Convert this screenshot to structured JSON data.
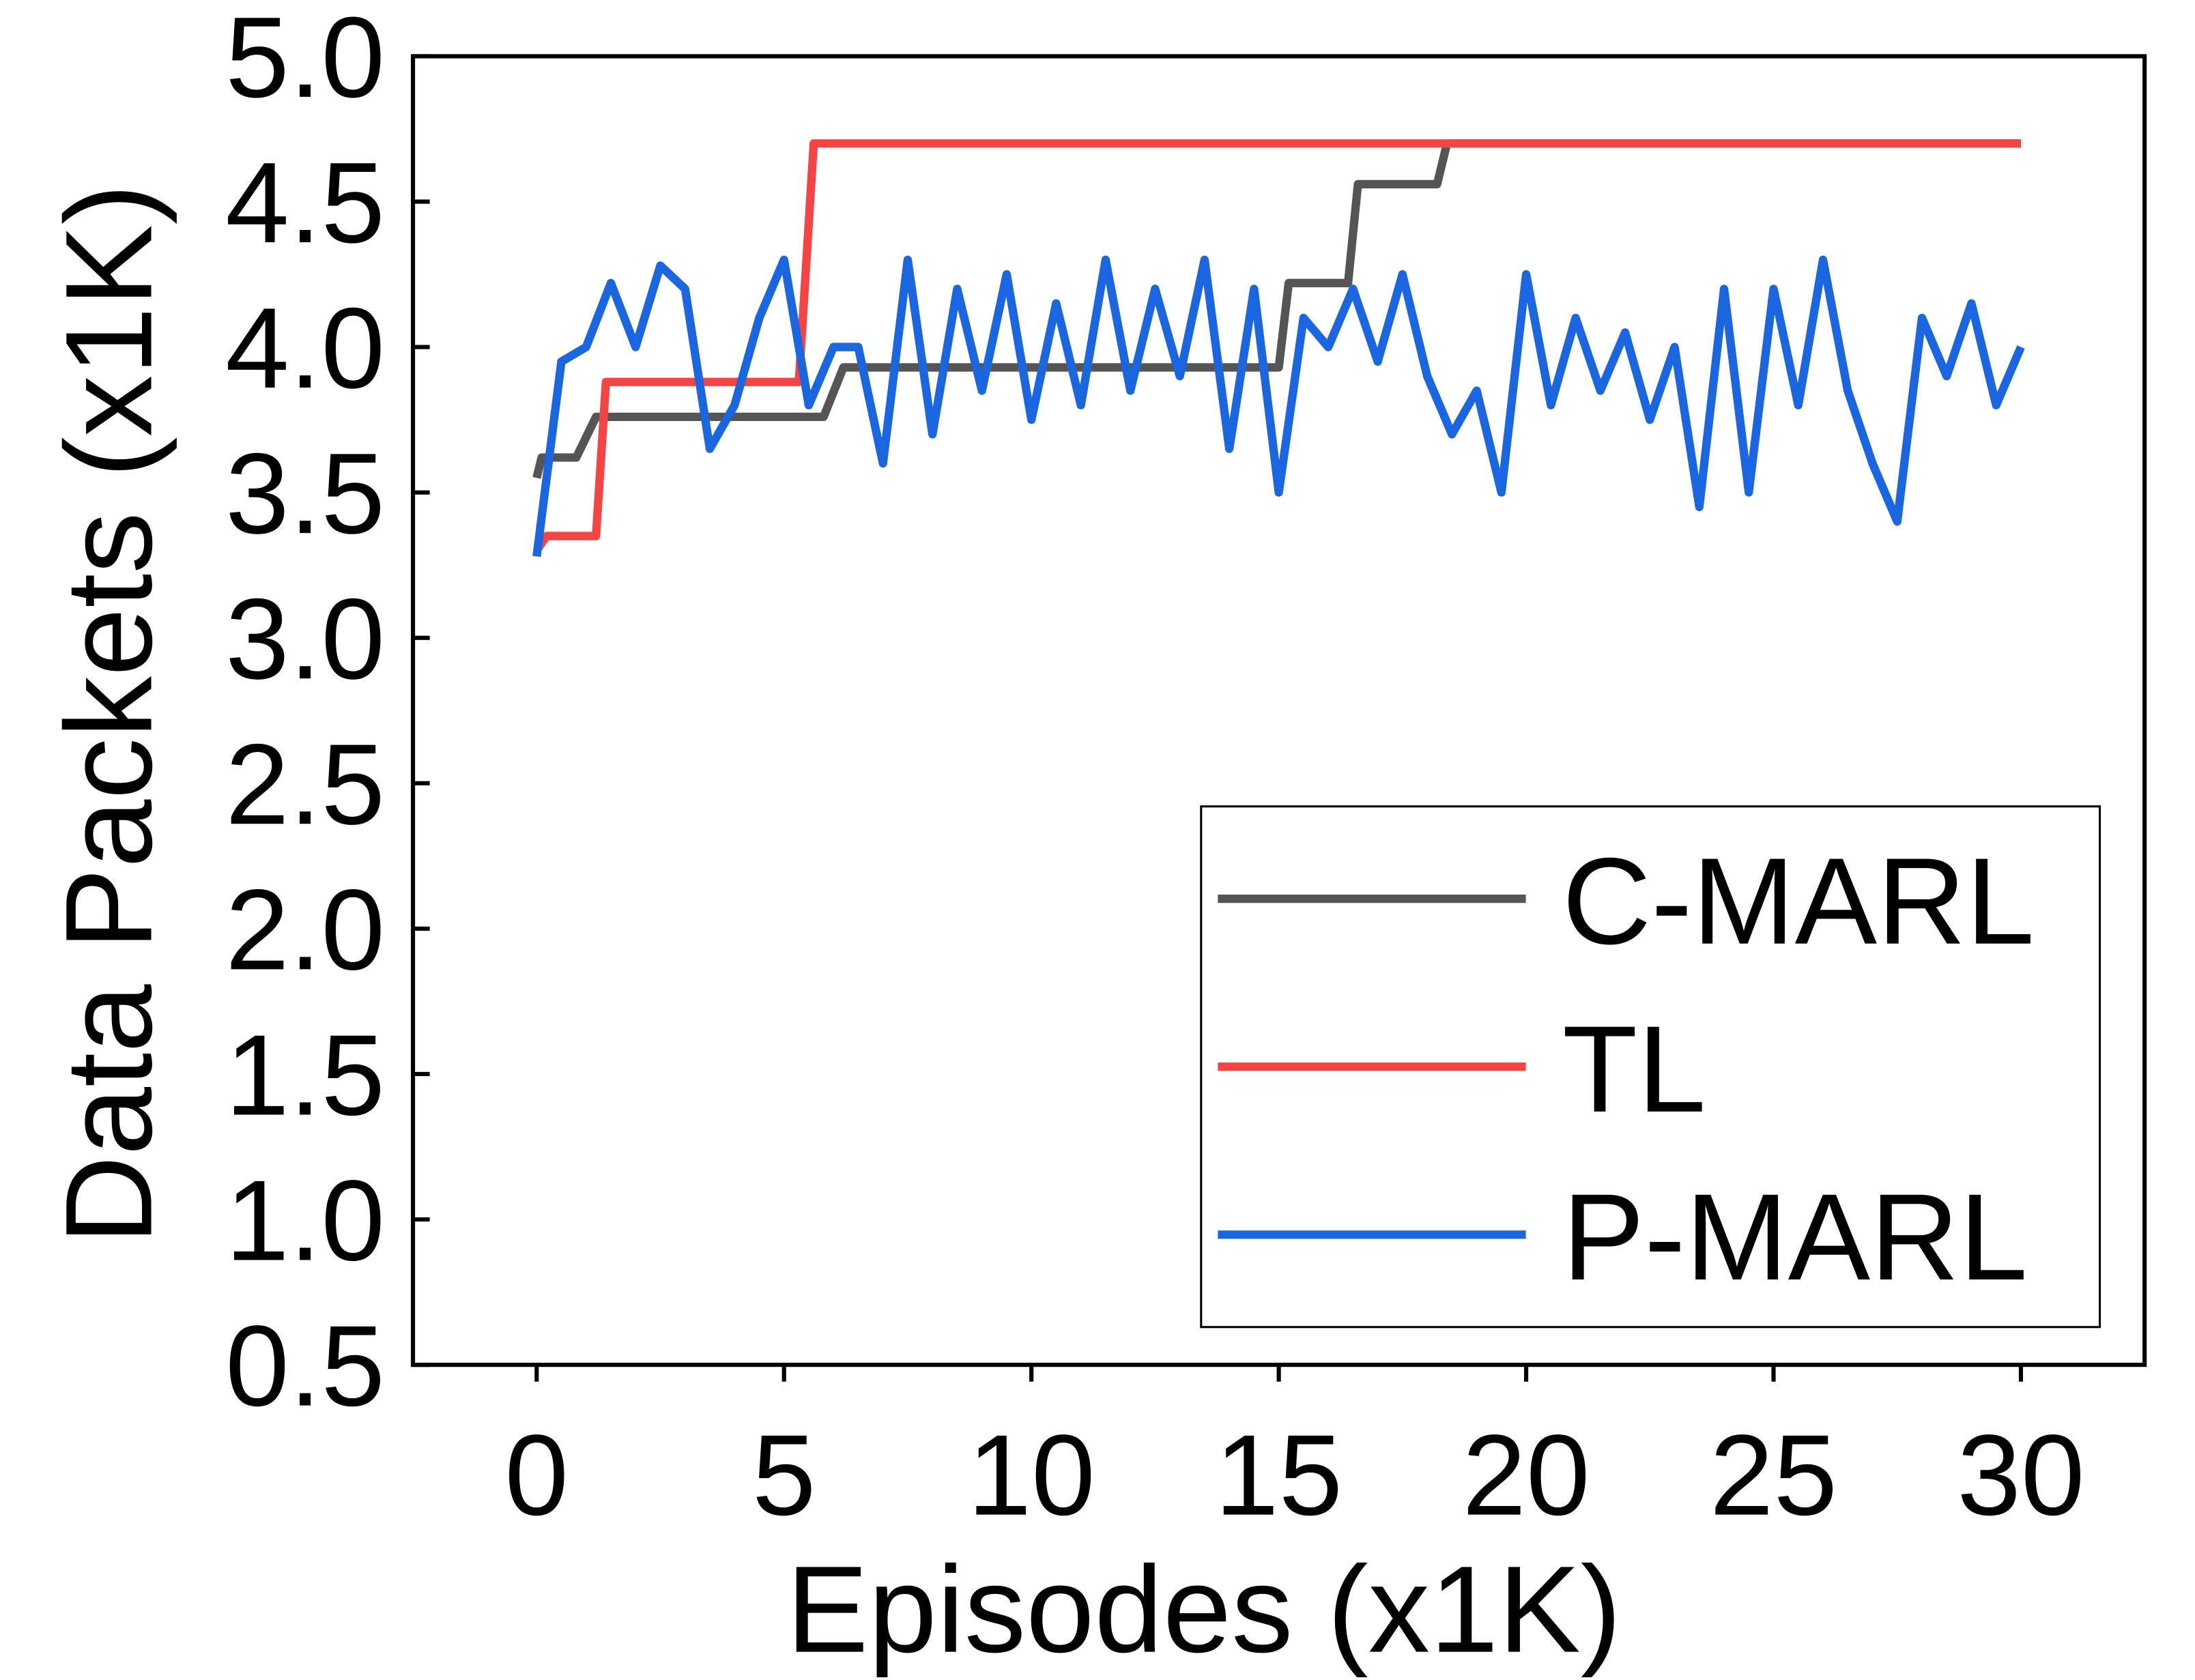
{
  "chart_data": {
    "type": "line",
    "x_label": "Episodes (x1K)",
    "y_label": "Data Packets (x1K)",
    "xlim": [
      -2.5,
      32.5
    ],
    "xticks": [
      0,
      5,
      10,
      15,
      20,
      25,
      30
    ],
    "ylim": [
      0.5,
      5.0
    ],
    "yticks": [
      {
        "value": 0.5,
        "label": "0.5"
      },
      {
        "value": 1.0,
        "label": "1.0"
      },
      {
        "value": 1.5,
        "label": "1.5"
      },
      {
        "value": 2.0,
        "label": "2.0"
      },
      {
        "value": 2.5,
        "label": "2.5"
      },
      {
        "value": 3.0,
        "label": "3.0"
      },
      {
        "value": 3.5,
        "label": "3.5"
      },
      {
        "value": 4.0,
        "label": "4.0"
      },
      {
        "value": 4.5,
        "label": "4.5"
      },
      {
        "value": 5.0,
        "label": "5.0"
      }
    ],
    "legend": "lower right",
    "series": [
      {
        "name": "C-MARL",
        "color": "#555555",
        "x": [
          0,
          0.1,
          0.8,
          1.2,
          5.8,
          6.2,
          15.0,
          15.2,
          16.4,
          16.6,
          18.2,
          18.4,
          30
        ],
        "values": [
          3.55,
          3.62,
          3.62,
          3.76,
          3.76,
          3.93,
          3.93,
          4.22,
          4.22,
          4.56,
          4.56,
          4.7,
          4.7
        ]
      },
      {
        "name": "TL",
        "color": "#f44444",
        "x": [
          0,
          0.2,
          1.2,
          1.4,
          5.3,
          5.6,
          30
        ],
        "values": [
          3.3,
          3.35,
          3.35,
          3.88,
          3.88,
          4.7,
          4.7
        ]
      },
      {
        "name": "P-MARL",
        "color": "#1a66e0",
        "x": [
          0,
          0.5,
          1,
          1.5,
          2,
          2.5,
          3,
          3.5,
          4,
          4.5,
          5,
          5.5,
          6,
          6.5,
          7,
          7.5,
          8,
          8.5,
          9,
          9.5,
          10,
          10.5,
          11,
          11.5,
          12,
          12.5,
          13,
          13.5,
          14,
          14.5,
          15,
          15.5,
          16,
          16.5,
          17,
          17.5,
          18,
          18.5,
          19,
          19.5,
          20,
          20.5,
          21,
          21.5,
          22,
          22.5,
          23,
          23.5,
          24,
          24.5,
          25,
          25.5,
          26,
          26.5,
          27,
          27.5,
          28,
          28.5,
          29,
          29.5,
          30
        ],
        "values": [
          3.28,
          3.95,
          4.0,
          4.22,
          4.0,
          4.28,
          4.2,
          3.65,
          3.8,
          4.1,
          4.3,
          3.8,
          4.0,
          4.0,
          3.6,
          4.3,
          3.7,
          4.2,
          3.85,
          4.25,
          3.75,
          4.15,
          3.8,
          4.3,
          3.85,
          4.2,
          3.9,
          4.3,
          3.65,
          4.2,
          3.5,
          4.1,
          4.0,
          4.2,
          3.95,
          4.25,
          3.9,
          3.7,
          3.85,
          3.5,
          4.25,
          3.8,
          4.1,
          3.85,
          4.05,
          3.75,
          4.0,
          3.45,
          4.2,
          3.5,
          4.2,
          3.8,
          4.3,
          3.85,
          3.6,
          3.4,
          4.1,
          3.9,
          4.15,
          3.8,
          4.0
        ]
      }
    ]
  }
}
